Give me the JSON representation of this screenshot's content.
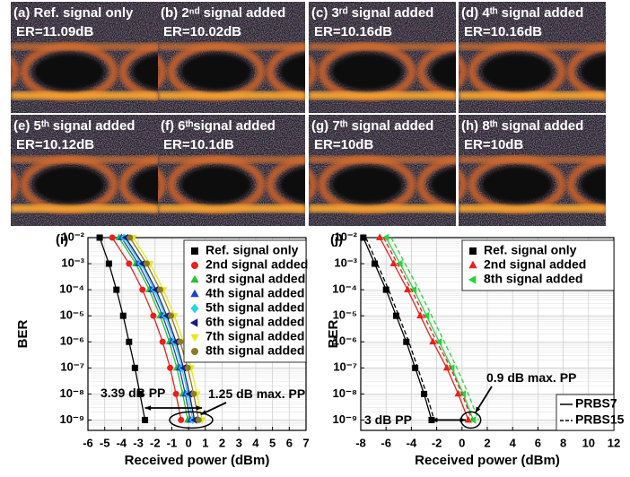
{
  "eye_panels": [
    {
      "label": "(a) Ref. signal only",
      "er": "ER=11.09dB"
    },
    {
      "label": "(b) 2ⁿᵈ signal added",
      "er": "ER=10.02dB"
    },
    {
      "label": "(c) 3ʳᵈ signal added",
      "er": "ER=10.16dB"
    },
    {
      "label": "(d) 4ᵗʰ signal added",
      "er": "ER=10.16dB"
    },
    {
      "label": "(e) 5ᵗʰ signal added",
      "er": "ER=10.12dB"
    },
    {
      "label": "(f) 6ᵗʰsignal added",
      "er": "ER=10.1dB"
    },
    {
      "label": "(g) 7ᵗʰ signal added",
      "er": "ER=10dB"
    },
    {
      "label": "(h) 8ᵗʰ signal added",
      "er": "ER=10dB"
    }
  ],
  "chart_data": [
    {
      "type": "scatter",
      "panel_label": "(i)",
      "x_label": "Received power (dBm)",
      "y_label": "BER",
      "log_y": true,
      "grid": true,
      "legend": "upper right",
      "xlim": [
        -6,
        7
      ],
      "xticks": [
        -6,
        -5,
        -4,
        -3,
        -2,
        -1,
        0,
        1,
        2,
        3,
        4,
        5,
        6,
        7
      ],
      "ylim": [
        4e-10,
        0.01
      ],
      "yticks": [
        {
          "value": 0.01,
          "label": "10⁻²"
        },
        {
          "value": 0.001,
          "label": "10⁻³"
        },
        {
          "value": 0.0001,
          "label": "10⁻⁴"
        },
        {
          "value": 1e-05,
          "label": "10⁻⁵"
        },
        {
          "value": 1e-06,
          "label": "10⁻⁶"
        },
        {
          "value": 1e-07,
          "label": "10⁻⁷"
        },
        {
          "value": 1e-08,
          "label": "10⁻⁸"
        },
        {
          "value": 1e-09,
          "label": "10⁻⁹"
        }
      ],
      "annotations": [
        "3.39 dB PP",
        "1.25 dB max. PP"
      ],
      "series": [
        {
          "name": "Ref. signal only",
          "color": "#000000",
          "marker": "square",
          "x": [
            -5.3,
            -4.75,
            -4.3,
            -3.9,
            -3.55,
            -3.2,
            -2.9,
            -2.6
          ],
          "values": [
            0.01,
            0.001,
            0.0001,
            1e-05,
            1e-06,
            1e-07,
            1e-08,
            1e-09
          ]
        },
        {
          "name": "2nd signal added",
          "color": "#e8201e",
          "marker": "circle",
          "x": [
            -4.55,
            -3.55,
            -2.75,
            -2.1,
            -1.55,
            -1.1,
            -0.75,
            -0.45
          ],
          "values": [
            0.01,
            0.001,
            0.0001,
            1e-05,
            1e-06,
            1e-07,
            1e-08,
            1e-09
          ]
        },
        {
          "name": "3rd signal added",
          "color": "#27c427",
          "marker": "triangle-up",
          "x": [
            -4.15,
            -3.15,
            -2.35,
            -1.7,
            -1.15,
            -0.7,
            -0.35,
            -0.05
          ],
          "values": [
            0.01,
            0.001,
            0.0001,
            1e-05,
            1e-06,
            1e-07,
            1e-08,
            1e-09
          ]
        },
        {
          "name": "4th signal added",
          "color": "#1f3fd6",
          "marker": "triangle-up",
          "x": [
            -4.0,
            -3.0,
            -2.2,
            -1.55,
            -1.0,
            -0.55,
            -0.2,
            0.1
          ],
          "values": [
            0.01,
            0.001,
            0.0001,
            1e-05,
            1e-06,
            1e-07,
            1e-08,
            1e-09
          ]
        },
        {
          "name": "5th signal added",
          "color": "#2ad4e8",
          "marker": "diamond",
          "x": [
            -3.85,
            -2.85,
            -2.05,
            -1.4,
            -0.85,
            -0.4,
            -0.05,
            0.25
          ],
          "values": [
            0.01,
            0.001,
            0.0001,
            1e-05,
            1e-06,
            1e-07,
            1e-08,
            1e-09
          ]
        },
        {
          "name": "6th signal added",
          "color": "#1a1a7a",
          "marker": "triangle-left",
          "x": [
            -3.75,
            -2.75,
            -1.95,
            -1.3,
            -0.75,
            -0.3,
            0.05,
            0.35
          ],
          "values": [
            0.01,
            0.001,
            0.0001,
            1e-05,
            1e-06,
            1e-07,
            1e-08,
            1e-09
          ]
        },
        {
          "name": "7th signal added",
          "color": "#e8e81a",
          "marker": "triangle-down",
          "x": [
            -3.3,
            -2.3,
            -1.5,
            -0.85,
            -0.3,
            0.15,
            0.5,
            0.8
          ],
          "values": [
            0.01,
            0.001,
            0.0001,
            1e-05,
            1e-06,
            1e-07,
            1e-08,
            1e-09
          ]
        },
        {
          "name": "8th signal added",
          "color": "#8a7a2a",
          "marker": "circle",
          "x": [
            -3.5,
            -2.5,
            -1.7,
            -1.05,
            -0.5,
            -0.05,
            0.3,
            0.6
          ],
          "values": [
            0.01,
            0.001,
            0.0001,
            1e-05,
            1e-06,
            1e-07,
            1e-08,
            1e-09
          ]
        }
      ]
    },
    {
      "type": "scatter",
      "panel_label": "(j)",
      "x_label": "Received power (dBm)",
      "y_label": "BER",
      "log_y": true,
      "grid": true,
      "legend": "upper right",
      "xlim": [
        -8,
        12
      ],
      "xticks": [
        -8,
        -6,
        -4,
        -2,
        0,
        2,
        4,
        6,
        8,
        10,
        12
      ],
      "ylim": [
        4e-10,
        0.01
      ],
      "yticks": [
        {
          "value": 0.01,
          "label": "10⁻²"
        },
        {
          "value": 0.001,
          "label": "10⁻³"
        },
        {
          "value": 0.0001,
          "label": "10⁻⁴"
        },
        {
          "value": 1e-05,
          "label": "10⁻⁵"
        },
        {
          "value": 1e-06,
          "label": "10⁻⁶"
        },
        {
          "value": 1e-07,
          "label": "10⁻⁷"
        },
        {
          "value": 1e-08,
          "label": "10⁻⁸"
        },
        {
          "value": 1e-09,
          "label": "10⁻⁹"
        }
      ],
      "annotations": [
        "3 dB PP",
        "0.9 dB max. PP"
      ],
      "line_styles": [
        {
          "name": "PRBS7",
          "dashed": false
        },
        {
          "name": "PRBS15",
          "dashed": true
        }
      ],
      "series": [
        {
          "name": "Ref. signal only",
          "color": "#000000",
          "marker": "square",
          "x": [
            -7.8,
            -6.9,
            -6.0,
            -5.2,
            -4.4,
            -3.7,
            -3.0,
            -2.4
          ],
          "values": [
            0.01,
            0.001,
            0.0001,
            1e-05,
            1e-06,
            1e-07,
            1e-08,
            1e-09
          ]
        },
        {
          "name": "2nd signal added",
          "color": "#e8201e",
          "marker": "triangle-up",
          "x": [
            -6.5,
            -5.4,
            -4.3,
            -3.3,
            -2.3,
            -1.2,
            -0.3,
            0.5
          ],
          "values": [
            0.01,
            0.001,
            0.0001,
            1e-05,
            1e-06,
            1e-07,
            1e-08,
            1e-09
          ]
        },
        {
          "name": "8th signal added",
          "color": "#27d43a",
          "marker": "triangle-left",
          "x": [
            -6.0,
            -4.9,
            -3.8,
            -2.8,
            -1.8,
            -0.8,
            0.1,
            0.9
          ],
          "values": [
            0.01,
            0.001,
            0.0001,
            1e-05,
            1e-06,
            1e-07,
            1e-08,
            1e-09
          ]
        },
        {
          "color": "#000000",
          "dashed": true,
          "x": [
            -7.6,
            -6.7,
            -5.8,
            -5.0,
            -4.2,
            -3.5,
            -2.8,
            -2.2
          ],
          "values": [
            0.01,
            0.001,
            0.0001,
            1e-05,
            1e-06,
            1e-07,
            1e-08,
            1e-09
          ]
        },
        {
          "color": "#e8201e",
          "dashed": true,
          "x": [
            -6.2,
            -5.1,
            -4.0,
            -3.0,
            -2.0,
            -0.9,
            0.0,
            0.8
          ],
          "values": [
            0.01,
            0.001,
            0.0001,
            1e-05,
            1e-06,
            1e-07,
            1e-08,
            1e-09
          ]
        },
        {
          "color": "#27d43a",
          "dashed": true,
          "x": [
            -5.6,
            -4.5,
            -3.4,
            -2.4,
            -1.4,
            -0.4,
            0.5,
            1.3
          ],
          "values": [
            0.01,
            0.001,
            0.0001,
            1e-05,
            1e-06,
            1e-07,
            1e-08,
            1e-09
          ]
        }
      ]
    }
  ]
}
